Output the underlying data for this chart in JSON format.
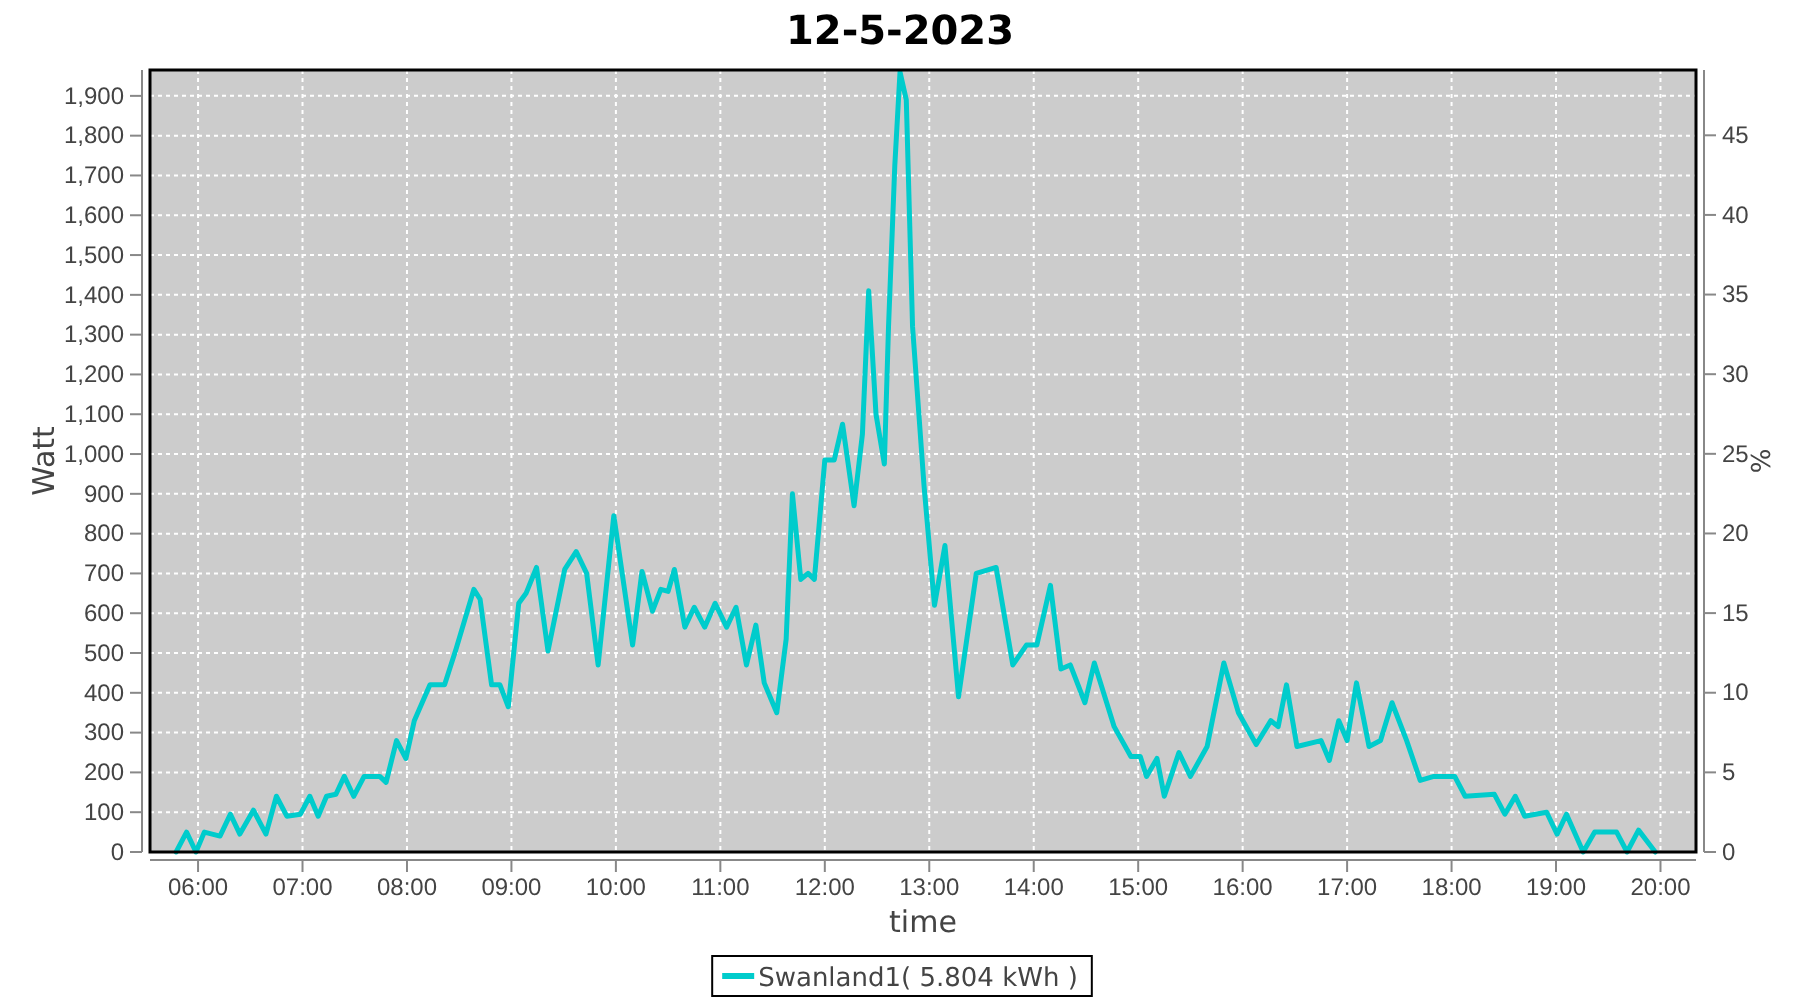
{
  "chart_data": {
    "type": "line",
    "title": "12-5-2023",
    "xlabel": "time",
    "ylabel": "Watt",
    "y2label": "%",
    "xlim": [
      5.54,
      20.34
    ],
    "xticks": [
      {
        "value": 6,
        "label": "06:00"
      },
      {
        "value": 7,
        "label": "07:00"
      },
      {
        "value": 8,
        "label": "08:00"
      },
      {
        "value": 9,
        "label": "09:00"
      },
      {
        "value": 10,
        "label": "10:00"
      },
      {
        "value": 11,
        "label": "11:00"
      },
      {
        "value": 12,
        "label": "12:00"
      },
      {
        "value": 13,
        "label": "13:00"
      },
      {
        "value": 14,
        "label": "14:00"
      },
      {
        "value": 15,
        "label": "15:00"
      },
      {
        "value": 16,
        "label": "16:00"
      },
      {
        "value": 17,
        "label": "17:00"
      },
      {
        "value": 18,
        "label": "18:00"
      },
      {
        "value": 19,
        "label": "19:00"
      },
      {
        "value": 20,
        "label": "20:00"
      }
    ],
    "ylim": [
      0,
      1965
    ],
    "yticks": [
      0,
      100,
      200,
      300,
      400,
      500,
      600,
      700,
      800,
      900,
      {
        "value": 1000,
        "label": "1,000"
      },
      {
        "value": 1100,
        "label": "1,100"
      },
      {
        "value": 1200,
        "label": "1,200"
      },
      {
        "value": 1300,
        "label": "1,300"
      },
      {
        "value": 1400,
        "label": "1,400"
      },
      {
        "value": 1500,
        "label": "1,500"
      },
      {
        "value": 1600,
        "label": "1,600"
      },
      {
        "value": 1700,
        "label": "1,700"
      },
      {
        "value": 1800,
        "label": "1,800"
      },
      {
        "value": 1900,
        "label": "1,900"
      }
    ],
    "y2lim": [
      0,
      49.1
    ],
    "y2ticks": [
      0,
      5,
      10,
      15,
      20,
      25,
      30,
      35,
      40,
      45
    ],
    "grid": true,
    "legend": "bottom",
    "marker": "none",
    "line_style": "solid",
    "x": [
      5.79,
      5.89,
      5.98,
      6.06,
      6.21,
      6.31,
      6.4,
      6.53,
      6.65,
      6.75,
      6.85,
      6.98,
      7.07,
      7.15,
      7.23,
      7.32,
      7.4,
      7.49,
      7.59,
      7.74,
      7.8,
      7.9,
      7.99,
      8.07,
      8.22,
      8.36,
      8.47,
      8.64,
      8.7,
      8.81,
      8.89,
      8.97,
      9.07,
      9.14,
      9.24,
      9.35,
      9.51,
      9.62,
      9.72,
      9.83,
      9.98,
      10.16,
      10.25,
      10.35,
      10.43,
      10.5,
      10.56,
      10.66,
      10.75,
      10.85,
      10.95,
      11.06,
      11.15,
      11.25,
      11.34,
      11.42,
      11.54,
      11.63,
      11.69,
      11.77,
      11.84,
      11.9,
      12,
      12.09,
      12.17,
      12.28,
      12.36,
      12.42,
      12.49,
      12.57,
      12.61,
      12.67,
      12.72,
      12.78,
      12.84,
      12.95,
      13.05,
      13.15,
      13.28,
      13.45,
      13.64,
      13.8,
      13.93,
      14.03,
      14.16,
      14.26,
      14.35,
      14.49,
      14.58,
      14.77,
      14.93,
      15.02,
      15.08,
      15.18,
      15.25,
      15.39,
      15.5,
      15.66,
      15.82,
      15.96,
      16.13,
      16.27,
      16.34,
      16.42,
      16.52,
      16.75,
      16.83,
      16.92,
      17,
      17.09,
      17.21,
      17.32,
      17.43,
      17.57,
      17.7,
      17.83,
      18.03,
      18.13,
      18.41,
      18.51,
      18.61,
      18.7,
      18.91,
      19.01,
      19.1,
      19.26,
      19.37,
      19.58,
      19.68,
      19.79,
      19.95
    ],
    "series": [
      {
        "name": "Swanland1( 5.804 kWh )",
        "color": "#00cccc",
        "values": [
          0,
          50,
          0,
          50,
          40,
          95,
          45,
          105,
          45,
          140,
          90,
          95,
          140,
          90,
          140,
          145,
          190,
          140,
          190,
          190,
          175,
          280,
          235,
          330,
          420,
          420,
          510,
          660,
          635,
          420,
          420,
          365,
          625,
          650,
          715,
          505,
          710,
          755,
          700,
          470,
          845,
          520,
          705,
          605,
          660,
          655,
          710,
          565,
          615,
          565,
          625,
          565,
          615,
          470,
          570,
          425,
          350,
          535,
          900,
          685,
          700,
          685,
          985,
          985,
          1075,
          870,
          1050,
          1410,
          1100,
          975,
          1320,
          1725,
          1960,
          1890,
          1320,
          920,
          620,
          770,
          390,
          700,
          715,
          470,
          520,
          520,
          670,
          460,
          470,
          375,
          475,
          315,
          240,
          240,
          190,
          235,
          140,
          250,
          190,
          265,
          475,
          350,
          270,
          330,
          315,
          420,
          265,
          280,
          230,
          330,
          280,
          425,
          265,
          280,
          375,
          280,
          180,
          190,
          190,
          140,
          145,
          95,
          140,
          90,
          100,
          45,
          95,
          0,
          50,
          50,
          0,
          55,
          0
        ]
      }
    ]
  }
}
